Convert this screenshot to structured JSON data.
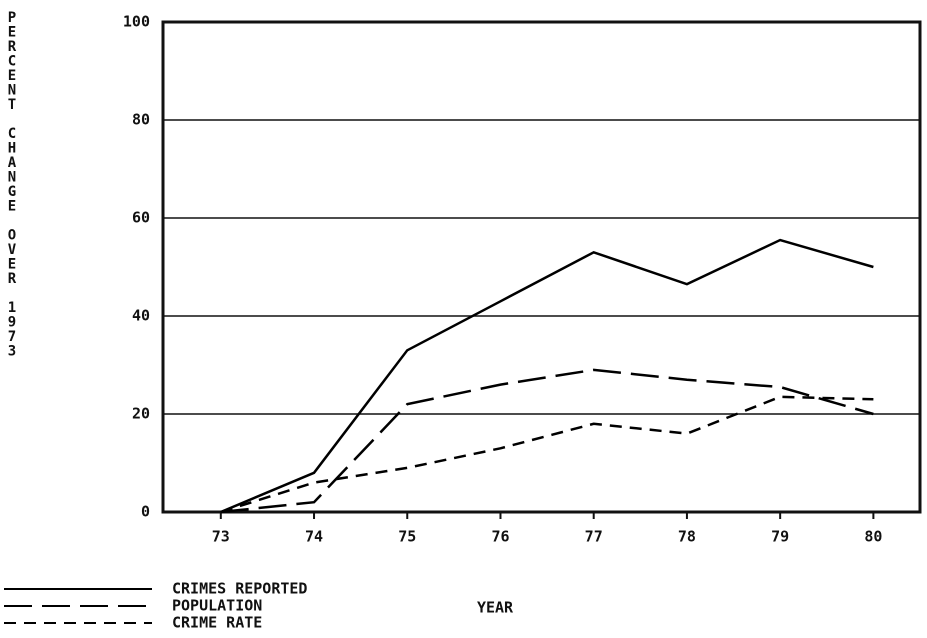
{
  "chart_data": {
    "type": "line",
    "x_label": "YEAR",
    "y_label": "PERCENT CHANGE OVER 1973",
    "x": [
      73,
      74,
      75,
      76,
      77,
      78,
      79,
      80
    ],
    "series": [
      {
        "name": "CRIMES REPORTED",
        "color": "#000000",
        "dash": "solid",
        "values": [
          0,
          8,
          33,
          43,
          53,
          46.5,
          55.5,
          50
        ]
      },
      {
        "name": "POPULATION",
        "color": "#000000",
        "dash": "long",
        "values": [
          0,
          2,
          22,
          26,
          29,
          27,
          25.5,
          20
        ]
      },
      {
        "name": "CRIME RATE",
        "color": "#000000",
        "dash": "short",
        "values": [
          0,
          6,
          9,
          13,
          18,
          16,
          23.5,
          23
        ]
      }
    ],
    "xlim": [
      72.38,
      80.5
    ],
    "xticks": [
      73,
      74,
      75,
      76,
      77,
      78,
      79,
      80
    ],
    "ylim": [
      0,
      100
    ],
    "yticks": [
      0,
      20,
      40,
      60,
      80,
      100
    ],
    "grid": true,
    "legend": "bottom-left"
  }
}
